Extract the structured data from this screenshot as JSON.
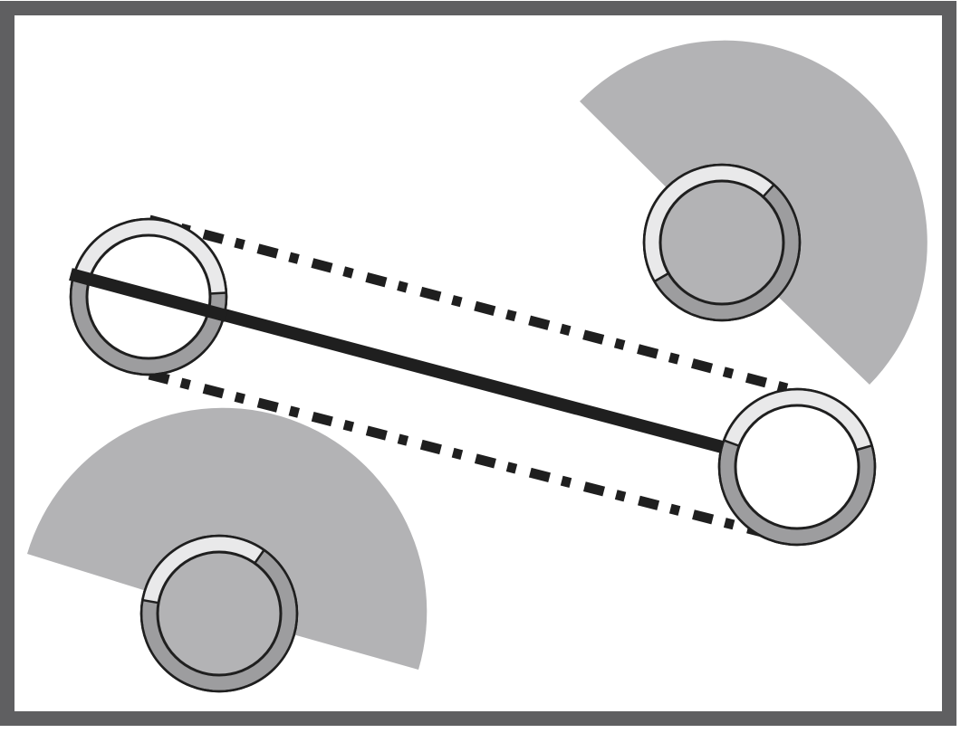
{
  "colors": {
    "background": "#ffffff",
    "frame": "#5f5f61",
    "cone": "#b3b3b5",
    "ring_dark": "#9d9d9f",
    "ring_light": "#e9e9ea",
    "node_filled": "#b3b3b5",
    "node_empty": "#ffffff",
    "outline": "#1f1f1f",
    "link": "#1f1f1f"
  },
  "nodes": [
    {
      "id": "A",
      "filled": false,
      "ring_light_fraction": 0.45,
      "ring_start_deg": -75
    },
    {
      "id": "B",
      "filled": true,
      "ring_light_fraction": 0.45,
      "ring_start_deg": -120
    },
    {
      "id": "C",
      "filled": false,
      "ring_light_fraction": 0.4,
      "ring_start_deg": -70
    },
    {
      "id": "D",
      "filled": true,
      "ring_light_fraction": 0.32,
      "ring_start_deg": -80
    }
  ],
  "links": [
    {
      "from": "A",
      "to": "C",
      "style": "solid"
    },
    {
      "from": "A",
      "to": "C",
      "style": "dashed-upper"
    },
    {
      "from": "A",
      "to": "C",
      "style": "dashed-lower"
    }
  ],
  "cones": [
    {
      "owner": "B"
    },
    {
      "owner": "D"
    }
  ]
}
